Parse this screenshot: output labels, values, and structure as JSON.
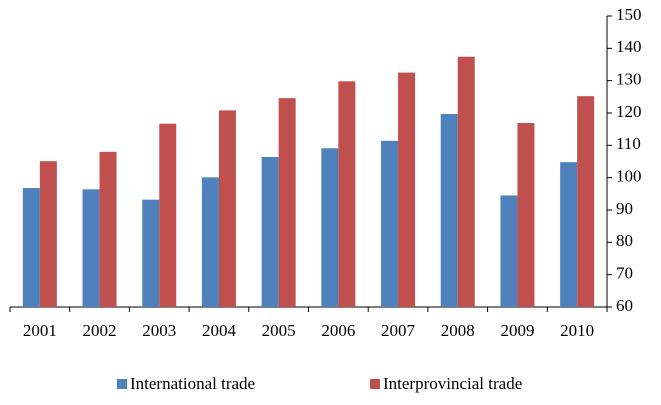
{
  "chart_data": {
    "type": "bar",
    "categories": [
      "2001",
      "2002",
      "2003",
      "2004",
      "2005",
      "2006",
      "2007",
      "2008",
      "2009",
      "2010"
    ],
    "series": [
      {
        "name": "International trade",
        "color": "#4f81bd",
        "values": [
          96.8,
          96.4,
          93.2,
          100.1,
          106.4,
          109.1,
          111.4,
          119.7,
          94.5,
          104.8
        ]
      },
      {
        "name": "Interprovincial trade",
        "color": "#c0504d",
        "values": [
          105.1,
          108,
          116.7,
          120.8,
          124.6,
          129.8,
          132.5,
          137.4,
          116.9,
          125.2
        ]
      }
    ],
    "ylim": [
      60,
      150
    ],
    "yticks": [
      60,
      70,
      80,
      90,
      100,
      110,
      120,
      130,
      140,
      150
    ],
    "y_axis_side": "right",
    "legend": "bottom"
  }
}
